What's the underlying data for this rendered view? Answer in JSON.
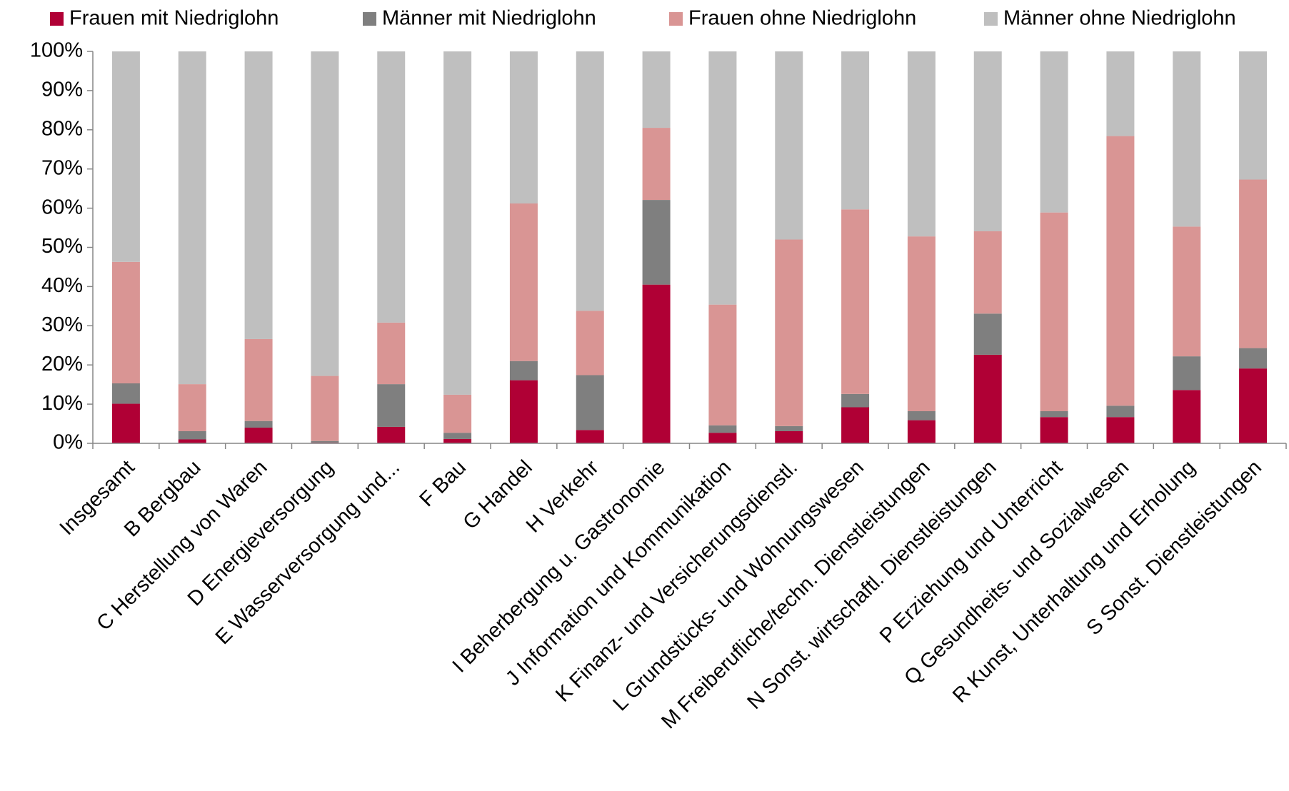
{
  "chart_data": {
    "type": "stacked_bar",
    "categories": [
      "Insgesamt",
      "B Bergbau",
      "C Herstellung von Waren",
      "D Energieversorgung",
      "E Wasserversorgung und...",
      "F Bau",
      "G Handel",
      "H Verkehr",
      "I Beherbergung u. Gastronomie",
      "J Information und Kommunikation",
      "K Finanz- und Versicherungsdienstl.",
      "L Grundstücks- und Wohnungswesen",
      "M Freiberufliche/techn. Dienstleistungen",
      "N Sonst. wirtschaftl. Dienstleistungen",
      "P Erziehung und Unterricht",
      "Q Gesundheits- und Sozialwesen",
      "R Kunst, Unterhaltung und Erholung",
      "S Sonst. Dienstleistungen"
    ],
    "series": [
      {
        "name": "Frauen mit Niedriglohn",
        "color": "#b00035",
        "values": [
          10.1,
          1.0,
          4.0,
          0.2,
          4.2,
          1.1,
          16.1,
          3.4,
          40.5,
          2.7,
          3.1,
          9.2,
          5.9,
          22.6,
          6.7,
          6.7,
          13.6,
          19.1
        ]
      },
      {
        "name": "Männer mit Niedriglohn",
        "color": "#7f7f7f",
        "values": [
          5.2,
          2.1,
          1.7,
          0.4,
          10.9,
          1.6,
          4.9,
          14.0,
          21.6,
          1.9,
          1.3,
          3.4,
          2.3,
          10.5,
          1.5,
          2.9,
          8.6,
          5.2
        ]
      },
      {
        "name": "Frauen ohne Niedriglohn",
        "color": "#d99594",
        "values": [
          31.0,
          12.0,
          20.9,
          16.6,
          15.7,
          9.7,
          40.2,
          16.4,
          18.4,
          30.8,
          47.6,
          47.1,
          44.6,
          21.0,
          50.7,
          68.8,
          33.1,
          43.0
        ]
      },
      {
        "name": "Männer ohne Niedriglohn",
        "color": "#bfbfbf",
        "values": [
          53.7,
          84.9,
          73.4,
          82.8,
          69.2,
          87.6,
          38.8,
          66.2,
          19.5,
          64.6,
          48.0,
          40.3,
          47.2,
          45.9,
          41.1,
          21.6,
          44.7,
          32.7
        ]
      }
    ],
    "ylim": [
      0,
      100
    ],
    "yticks": [
      {
        "value": 0,
        "label": "0%"
      },
      {
        "value": 10,
        "label": "10%"
      },
      {
        "value": 20,
        "label": "20%"
      },
      {
        "value": 30,
        "label": "30%"
      },
      {
        "value": 40,
        "label": "40%"
      },
      {
        "value": 50,
        "label": "50%"
      },
      {
        "value": 60,
        "label": "60%"
      },
      {
        "value": 70,
        "label": "70%"
      },
      {
        "value": 80,
        "label": "80%"
      },
      {
        "value": 90,
        "label": "90%"
      },
      {
        "value": 100,
        "label": "100%"
      }
    ],
    "legend": "top"
  }
}
